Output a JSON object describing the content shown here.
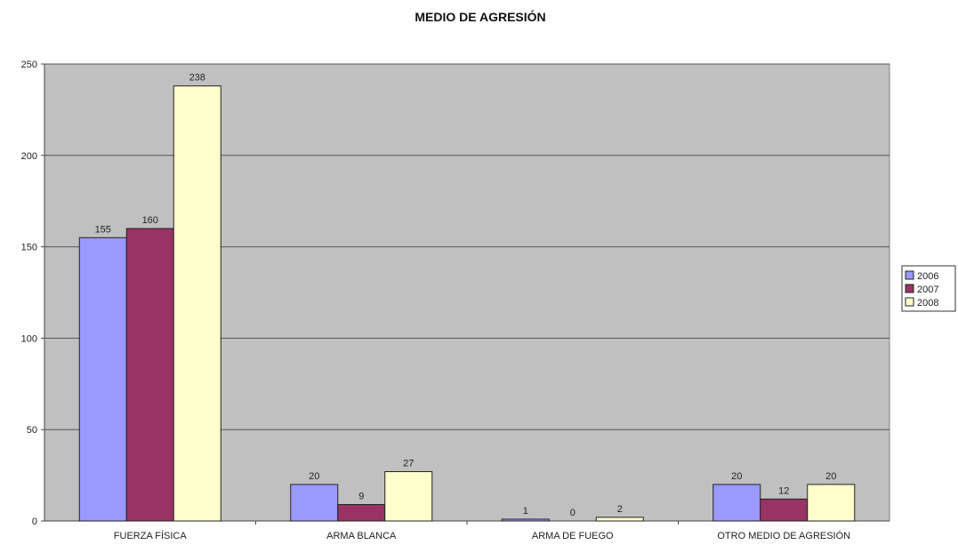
{
  "chart_data": {
    "type": "bar",
    "title": "MEDIO DE AGRESIÓN",
    "xlabel": "",
    "ylabel": "",
    "categories": [
      "FUERZA FÍSICA",
      "ARMA BLANCA",
      "ARMA DE FUEGO",
      "OTRO MEDIO DE AGRESIÓN"
    ],
    "series": [
      {
        "name": "2006",
        "values": [
          155,
          20,
          1,
          20
        ],
        "color": "#9999ff"
      },
      {
        "name": "2007",
        "values": [
          160,
          9,
          0,
          12
        ],
        "color": "#993366"
      },
      {
        "name": "2008",
        "values": [
          238,
          27,
          2,
          20
        ],
        "color": "#ffffcc"
      }
    ],
    "ylim": [
      0,
      250
    ],
    "yticks": [
      0,
      50,
      100,
      150,
      200,
      250
    ],
    "grid": true,
    "legend_position": "right",
    "plot_background": "#c0c0c0"
  }
}
